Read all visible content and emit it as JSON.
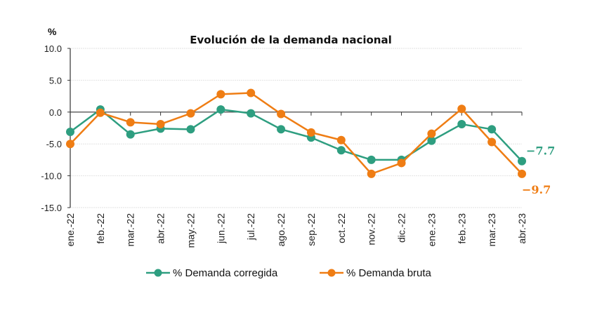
{
  "chart_data": {
    "type": "line",
    "title": "Evolución de la demanda nacional",
    "ylabel": "%",
    "xlabel": "",
    "ylim": [
      -15,
      10
    ],
    "yticks": [
      10,
      5,
      0,
      -5,
      -10,
      -15
    ],
    "ytick_labels": [
      "10.0",
      "5.0",
      "0.0",
      "-5.0",
      "-10.0",
      "-15.0"
    ],
    "grid": true,
    "legend_position": "bottom",
    "categories": [
      "ene.-22",
      "feb.-22",
      "mar.-22",
      "abr.-22",
      "may.-22",
      "jun.-22",
      "jul.-22",
      "ago.-22",
      "sep.-22",
      "oct.-22",
      "nov.-22",
      "dic.-22",
      "ene.-23",
      "feb.-23",
      "mar.-23",
      "abr.-23"
    ],
    "series": [
      {
        "name": "% Demanda corregida",
        "color": "#2e9e80",
        "values": [
          -3.1,
          0.4,
          -3.5,
          -2.6,
          -2.7,
          0.4,
          -0.2,
          -2.7,
          -4.0,
          -6.0,
          -7.5,
          -7.5,
          -4.5,
          -1.9,
          -2.7,
          -7.7
        ],
        "end_label": "-7.7"
      },
      {
        "name": "% Demanda bruta",
        "color": "#ef7d14",
        "values": [
          -5.0,
          -0.1,
          -1.6,
          -1.9,
          -0.2,
          2.8,
          3.0,
          -0.3,
          -3.2,
          -4.4,
          -9.7,
          -8.0,
          -3.4,
          0.5,
          -4.7,
          -9.7
        ],
        "end_label": "-9.7"
      }
    ]
  }
}
